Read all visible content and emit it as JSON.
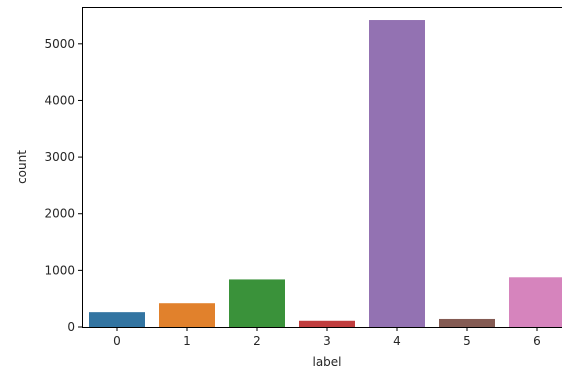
{
  "chart_data": {
    "type": "bar",
    "categories": [
      "0",
      "1",
      "2",
      "3",
      "4",
      "5",
      "6"
    ],
    "values": [
      262,
      420,
      840,
      110,
      5420,
      142,
      878
    ],
    "colors": [
      "#3274a1",
      "#e1812c",
      "#3a923a",
      "#c03d3e",
      "#9372b2",
      "#845b53",
      "#d684bd"
    ],
    "xlabel": "label",
    "ylabel": "count",
    "ylim": [
      0,
      5650
    ],
    "yticks": [
      0,
      1000,
      2000,
      3000,
      4000,
      5000
    ],
    "grid": false,
    "legend": "none"
  }
}
